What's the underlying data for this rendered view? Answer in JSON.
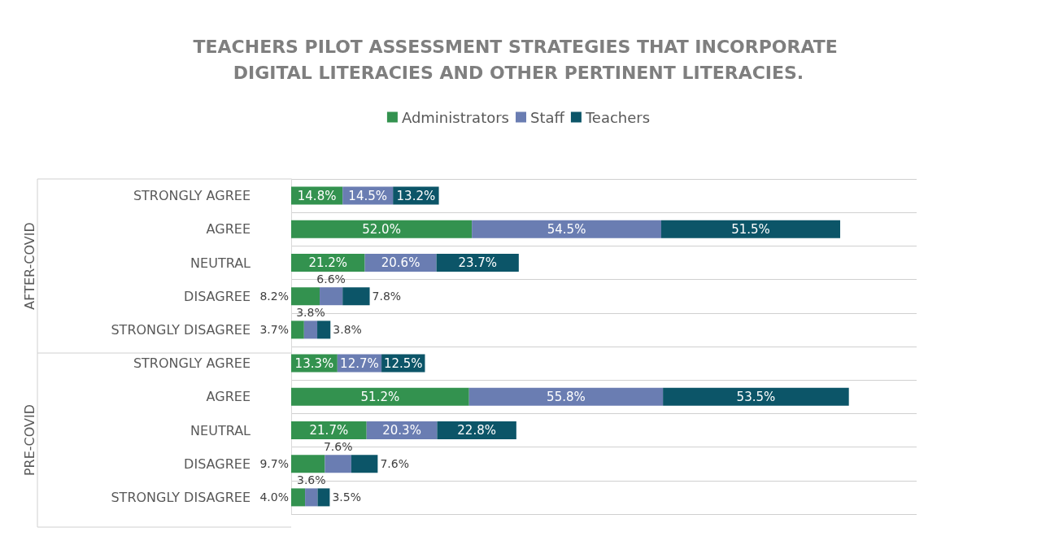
{
  "chart_data": {
    "type": "bar",
    "orientation": "horizontal",
    "stacked": true,
    "title": "TEACHERS PILOT ASSESSMENT STRATEGIES THAT INCORPORATE DIGITAL LITERACIES AND OTHER PERTINENT LITERACIES.",
    "categories": [
      "STRONGLY AGREE",
      "AGREE",
      "NEUTRAL",
      "DISAGREE",
      "STRONGLY DISAGREE",
      "STRONGLY AGREE",
      "AGREE",
      "NEUTRAL",
      "DISAGREE",
      "STRONGLY DISAGREE"
    ],
    "series": [
      {
        "name": "Administrators",
        "color": "#33924f",
        "values": [
          14.8,
          52.0,
          21.2,
          8.2,
          3.7,
          13.3,
          51.2,
          21.7,
          9.7,
          4.0
        ],
        "value_labels": [
          "14.8%",
          "52.0%",
          "21.2%",
          "8.2%",
          "3.7%",
          "13.3%",
          "51.2%",
          "21.7%",
          "9.7%",
          "4.0%"
        ]
      },
      {
        "name": "Staff",
        "color": "#6a7db2",
        "values": [
          14.5,
          54.5,
          20.6,
          6.6,
          3.8,
          12.7,
          55.8,
          20.3,
          7.6,
          3.6
        ],
        "value_labels": [
          "14.5%",
          "54.5%",
          "20.6%",
          "6.6%",
          "3.8%",
          "12.7%",
          "55.8%",
          "20.3%",
          "7.6%",
          "3.6%"
        ]
      },
      {
        "name": "Teachers",
        "color": "#0c5568",
        "values": [
          13.2,
          51.5,
          23.7,
          7.8,
          3.8,
          12.5,
          53.5,
          22.8,
          7.6,
          3.5
        ],
        "value_labels": [
          "13.2%",
          "51.5%",
          "23.7%",
          "7.8%",
          "3.8%",
          "12.5%",
          "53.5%",
          "22.8%",
          "7.6%",
          "3.5%"
        ]
      }
    ],
    "annotations": [
      "AFTER-COVID",
      "PRE-COVID"
    ],
    "legend": "top",
    "grid": "y",
    "tick_labels": "y"
  }
}
